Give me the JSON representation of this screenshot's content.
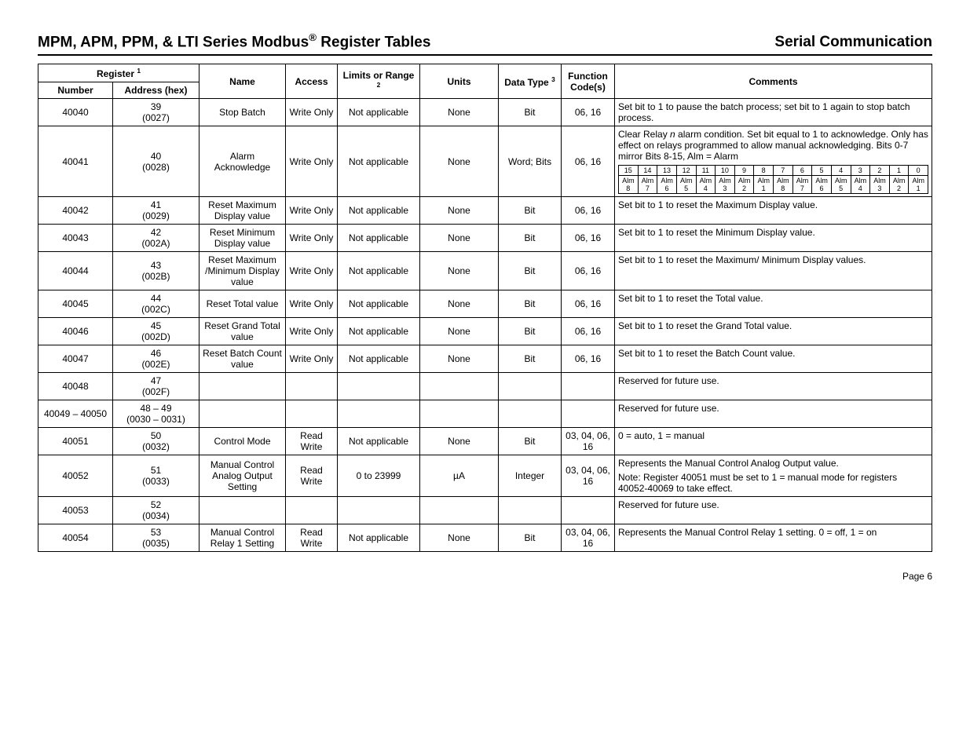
{
  "header": {
    "title_left_pre": "MPM, APM, PPM, & LTI Series Modbus",
    "title_left_sup": "®",
    "title_left_post": " Register Tables",
    "title_right": "Serial Communication"
  },
  "columns": {
    "register": "Register",
    "register_sup": "1",
    "number": "Number",
    "address": "Address (hex)",
    "name": "Name",
    "access": "Access",
    "limits": "Limits or Range",
    "limits_sup": "2",
    "units": "Units",
    "dtype": "Data Type",
    "dtype_sup": "3",
    "func": "Function Code(s)",
    "comments": "Comments"
  },
  "bits_header": [
    "15",
    "14",
    "13",
    "12",
    "11",
    "10",
    "9",
    "8",
    "7",
    "6",
    "5",
    "4",
    "3",
    "2",
    "1",
    "0"
  ],
  "bits_labels": [
    "Alm 8",
    "Alm 7",
    "Alm 6",
    "Alm 5",
    "Alm 4",
    "Alm 3",
    "Alm 2",
    "Alm 1",
    "Alm 8",
    "Alm 7",
    "Alm 6",
    "Alm 5",
    "Alm 4",
    "Alm 3",
    "Alm 2",
    "Alm 1"
  ],
  "rows": [
    {
      "num": "40040",
      "addr_top": "39",
      "addr_bot": "(0027)",
      "name": "Stop Batch",
      "access": "Write Only",
      "limits": "Not applicable",
      "units": "None",
      "dtype": "Bit",
      "func": "06, 16",
      "comment": "Set bit to 1 to pause the batch process; set bit to 1 again to stop batch process."
    },
    {
      "num": "40041",
      "addr_top": "40",
      "addr_bot": "(0028)",
      "name": "Alarm Acknowledge",
      "access": "Write Only",
      "limits": "Not applicable",
      "units": "None",
      "dtype": "Word; Bits",
      "func": "06, 16",
      "comment_pre": "Clear Relay ",
      "comment_ital": "n",
      "comment_post": " alarm condition. Set bit equal to 1 to acknowledge. Only has effect on relays programmed to allow manual acknowledging. Bits 0-7 mirror Bits 8-15, Alm = Alarm",
      "has_bits": true
    },
    {
      "num": "40042",
      "addr_top": "41",
      "addr_bot": "(0029)",
      "name": "Reset Maximum Display value",
      "access": "Write Only",
      "limits": "Not applicable",
      "units": "None",
      "dtype": "Bit",
      "func": "06, 16",
      "comment": "Set bit to 1 to reset the Maximum Display value."
    },
    {
      "num": "40043",
      "addr_top": "42",
      "addr_bot": "(002A)",
      "name": "Reset Minimum Display value",
      "access": "Write Only",
      "limits": "Not applicable",
      "units": "None",
      "dtype": "Bit",
      "func": "06, 16",
      "comment": "Set bit to 1 to reset the Minimum Display value."
    },
    {
      "num": "40044",
      "addr_top": "43",
      "addr_bot": "(002B)",
      "name": "Reset Maximum /Minimum Display value",
      "access": "Write Only",
      "limits": "Not applicable",
      "units": "None",
      "dtype": "Bit",
      "func": "06, 16",
      "comment": "Set bit to 1 to reset the Maximum/ Minimum Display values."
    },
    {
      "num": "40045",
      "addr_top": "44",
      "addr_bot": "(002C)",
      "name": "Reset Total value",
      "access": "Write Only",
      "limits": "Not applicable",
      "units": "None",
      "dtype": "Bit",
      "func": "06, 16",
      "comment": "Set bit to 1 to reset the Total value."
    },
    {
      "num": "40046",
      "addr_top": "45",
      "addr_bot": "(002D)",
      "name": "Reset Grand Total value",
      "access": "Write Only",
      "limits": "Not applicable",
      "units": "None",
      "dtype": "Bit",
      "func": "06, 16",
      "comment": "Set bit to 1 to reset the Grand Total value."
    },
    {
      "num": "40047",
      "addr_top": "46",
      "addr_bot": "(002E)",
      "name": "Reset Batch Count value",
      "access": "Write Only",
      "limits": "Not applicable",
      "units": "None",
      "dtype": "Bit",
      "func": "06, 16",
      "comment": "Set bit to 1 to reset the Batch Count value."
    },
    {
      "num": "40048",
      "addr_top": "47",
      "addr_bot": "(002F)",
      "name": "",
      "access": "",
      "limits": "",
      "units": "",
      "dtype": "",
      "func": "",
      "comment": "Reserved for future use."
    },
    {
      "num": "40049 – 40050",
      "addr_top": "48 – 49",
      "addr_bot": "(0030 – 0031)",
      "name": "",
      "access": "",
      "limits": "",
      "units": "",
      "dtype": "",
      "func": "",
      "comment": "Reserved for future use."
    },
    {
      "num": "40051",
      "addr_top": "50",
      "addr_bot": "(0032)",
      "name": "Control Mode",
      "access": "Read Write",
      "limits": "Not applicable",
      "units": "None",
      "dtype": "Bit",
      "func": "03, 04, 06, 16",
      "comment": "0 = auto, 1 = manual"
    },
    {
      "num": "40052",
      "addr_top": "51",
      "addr_bot": "(0033)",
      "name": "Manual Control Analog Output Setting",
      "access": "Read Write",
      "limits": "0 to 23999",
      "units": "µA",
      "dtype": "Integer",
      "func": "03, 04, 06, 16",
      "comment_line1": "Represents the Manual Control Analog Output value.",
      "comment_line2": "Note: Register 40051 must be set to 1 = manual mode for registers 40052-40069 to take effect."
    },
    {
      "num": "40053",
      "addr_top": "52",
      "addr_bot": "(0034)",
      "name": "",
      "access": "",
      "limits": "",
      "units": "",
      "dtype": "",
      "func": "",
      "comment": "Reserved for future use."
    },
    {
      "num": "40054",
      "addr_top": "53",
      "addr_bot": "(0035)",
      "name": "Manual Control Relay 1 Setting",
      "access": "Read Write",
      "limits": "Not applicable",
      "units": "None",
      "dtype": "Bit",
      "func": "03, 04, 06, 16",
      "comment": "Represents the Manual Control Relay 1 setting. 0 = off, 1 = on"
    }
  ],
  "footer": "Page 6"
}
